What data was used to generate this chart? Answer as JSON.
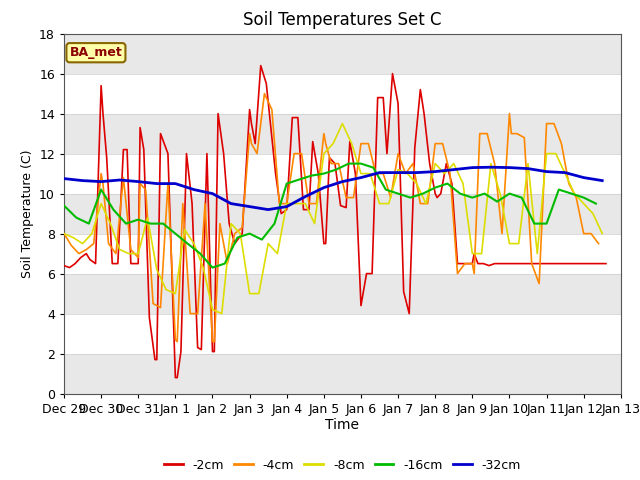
{
  "title": "Soil Temperatures Set C",
  "xlabel": "Time",
  "ylabel": "Soil Temperature (C)",
  "ylim": [
    0,
    18
  ],
  "annotation": "BA_met",
  "bg_color": "#ffffff",
  "plot_bg_color": "#ffffff",
  "band_color": "#e8e8e8",
  "xtick_labels": [
    "Dec 29",
    "Dec 30",
    "Dec 31",
    "Jan 1",
    "Jan 2",
    "Jan 3",
    "Jan 4",
    "Jan 5",
    "Jan 6",
    "Jan 7",
    "Jan 8",
    "Jan 9",
    "Jan 10",
    "Jan 11",
    "Jan 12",
    "Jan 13"
  ],
  "series": {
    "-2cm": {
      "color": "#dd0000",
      "lw": 1.2,
      "data_x": [
        0.0,
        0.15,
        0.3,
        0.45,
        0.6,
        0.7,
        0.85,
        1.0,
        1.05,
        1.15,
        1.3,
        1.45,
        1.6,
        1.7,
        1.8,
        2.0,
        2.05,
        2.15,
        2.3,
        2.45,
        2.5,
        2.6,
        2.8,
        3.0,
        3.05,
        3.15,
        3.3,
        3.45,
        3.6,
        3.7,
        3.85,
        4.0,
        4.05,
        4.15,
        4.3,
        4.45,
        4.6,
        4.8,
        5.0,
        5.05,
        5.15,
        5.3,
        5.45,
        5.6,
        5.7,
        5.85,
        6.0,
        6.15,
        6.3,
        6.45,
        6.6,
        6.7,
        6.85,
        7.0,
        7.05,
        7.15,
        7.3,
        7.45,
        7.6,
        7.7,
        7.85,
        8.0,
        8.15,
        8.3,
        8.45,
        8.6,
        8.7,
        8.85,
        9.0,
        9.15,
        9.3,
        9.45,
        9.6,
        9.7,
        9.85,
        10.0,
        10.05,
        10.15,
        10.3,
        10.45,
        10.6,
        10.8,
        11.0,
        11.05,
        11.15,
        11.3,
        11.45,
        11.6,
        11.7,
        11.85,
        12.0,
        12.05,
        12.15,
        12.3,
        12.45,
        12.6,
        12.8,
        13.0,
        13.05,
        13.15,
        13.3,
        13.45,
        13.6,
        13.8,
        14.0,
        14.05,
        14.15,
        14.3,
        14.45,
        14.6
      ],
      "data_y": [
        6.4,
        6.3,
        6.5,
        6.8,
        7.0,
        6.7,
        6.5,
        15.4,
        14.0,
        11.8,
        6.5,
        6.5,
        12.2,
        12.2,
        6.5,
        6.5,
        13.3,
        12.2,
        3.8,
        1.7,
        1.7,
        13.0,
        12.0,
        0.8,
        0.8,
        2.1,
        12.0,
        9.5,
        2.3,
        2.2,
        12.0,
        2.1,
        2.1,
        14.0,
        12.0,
        8.5,
        7.5,
        8.0,
        14.2,
        13.5,
        12.5,
        16.4,
        15.5,
        12.8,
        11.0,
        9.0,
        9.2,
        13.8,
        13.8,
        9.2,
        9.2,
        12.6,
        11.0,
        7.5,
        7.5,
        11.8,
        11.5,
        9.4,
        9.3,
        12.6,
        11.0,
        4.4,
        6.0,
        6.0,
        14.8,
        14.8,
        12.0,
        16.0,
        14.5,
        5.1,
        4.0,
        12.3,
        15.2,
        14.0,
        11.5,
        10.0,
        9.8,
        10.0,
        11.5,
        10.5,
        6.5,
        6.5,
        6.5,
        7.0,
        6.5,
        6.5,
        6.4,
        6.5,
        6.5,
        6.5,
        6.5,
        6.5,
        6.5,
        6.5,
        6.5,
        6.5,
        6.5,
        6.5,
        6.5,
        6.5,
        6.5,
        6.5,
        6.5,
        6.5,
        6.5,
        6.5,
        6.5,
        6.5,
        6.5,
        6.5
      ]
    },
    "-4cm": {
      "color": "#ff8800",
      "lw": 1.2,
      "data_x": [
        0.0,
        0.2,
        0.4,
        0.6,
        0.8,
        1.0,
        1.05,
        1.2,
        1.4,
        1.6,
        1.8,
        2.0,
        2.05,
        2.2,
        2.4,
        2.6,
        2.8,
        3.0,
        3.05,
        3.2,
        3.4,
        3.6,
        3.8,
        4.0,
        4.05,
        4.2,
        4.4,
        4.6,
        4.8,
        5.0,
        5.05,
        5.2,
        5.4,
        5.6,
        5.8,
        6.0,
        6.2,
        6.4,
        6.6,
        6.8,
        7.0,
        7.05,
        7.2,
        7.4,
        7.6,
        7.8,
        8.0,
        8.2,
        8.4,
        8.6,
        8.8,
        9.0,
        9.2,
        9.4,
        9.6,
        9.8,
        10.0,
        10.2,
        10.4,
        10.6,
        10.8,
        11.0,
        11.05,
        11.2,
        11.4,
        11.6,
        11.8,
        12.0,
        12.05,
        12.2,
        12.4,
        12.6,
        12.8,
        13.0,
        13.2,
        13.4,
        13.6,
        13.8,
        14.0,
        14.2,
        14.4
      ],
      "data_y": [
        8.0,
        7.4,
        7.0,
        7.2,
        7.5,
        11.0,
        10.5,
        7.5,
        7.0,
        10.8,
        7.2,
        6.8,
        10.5,
        10.2,
        4.5,
        4.3,
        10.5,
        2.7,
        2.6,
        9.5,
        4.0,
        4.0,
        9.5,
        2.6,
        2.6,
        8.5,
        6.5,
        8.0,
        8.3,
        13.0,
        12.5,
        12.0,
        15.0,
        14.2,
        9.5,
        9.5,
        12.0,
        12.0,
        9.5,
        9.5,
        13.0,
        12.5,
        11.5,
        11.5,
        9.8,
        9.8,
        12.5,
        12.5,
        11.0,
        11.0,
        9.8,
        12.0,
        11.0,
        11.5,
        9.5,
        9.5,
        12.5,
        12.5,
        11.0,
        6.0,
        6.5,
        6.5,
        6.0,
        13.0,
        13.0,
        11.5,
        8.0,
        14.0,
        13.0,
        13.0,
        12.8,
        6.5,
        5.5,
        13.5,
        13.5,
        12.5,
        10.5,
        9.8,
        8.0,
        8.0,
        7.5
      ]
    },
    "-8cm": {
      "color": "#dddd00",
      "lw": 1.2,
      "data_x": [
        0.0,
        0.25,
        0.5,
        0.75,
        1.0,
        1.25,
        1.5,
        1.75,
        2.0,
        2.25,
        2.5,
        2.75,
        3.0,
        3.25,
        3.5,
        3.75,
        4.0,
        4.25,
        4.5,
        4.75,
        5.0,
        5.25,
        5.5,
        5.75,
        6.0,
        6.25,
        6.5,
        6.75,
        7.0,
        7.25,
        7.5,
        7.75,
        8.0,
        8.25,
        8.5,
        8.75,
        9.0,
        9.25,
        9.5,
        9.75,
        10.0,
        10.25,
        10.5,
        10.75,
        11.0,
        11.25,
        11.5,
        11.75,
        12.0,
        12.25,
        12.5,
        12.75,
        13.0,
        13.25,
        13.5,
        13.75,
        14.0,
        14.25,
        14.5
      ],
      "data_y": [
        8.0,
        7.8,
        7.5,
        8.0,
        9.5,
        8.5,
        7.2,
        7.0,
        7.0,
        8.8,
        6.2,
        5.2,
        5.0,
        8.2,
        7.5,
        6.3,
        4.2,
        4.0,
        8.5,
        8.0,
        5.0,
        5.0,
        7.5,
        7.0,
        9.5,
        9.5,
        9.5,
        8.5,
        12.0,
        12.5,
        13.5,
        12.5,
        11.0,
        11.0,
        9.5,
        9.5,
        11.2,
        11.0,
        10.5,
        9.5,
        11.5,
        11.0,
        11.5,
        10.5,
        7.0,
        7.0,
        11.5,
        10.0,
        7.5,
        7.5,
        11.5,
        7.0,
        12.0,
        12.0,
        11.0,
        10.0,
        9.5,
        9.0,
        8.0
      ]
    },
    "-16cm": {
      "color": "#00bb00",
      "lw": 1.5,
      "data_x": [
        0.0,
        0.33,
        0.67,
        1.0,
        1.33,
        1.67,
        2.0,
        2.33,
        2.67,
        3.0,
        3.33,
        3.67,
        4.0,
        4.33,
        4.67,
        5.0,
        5.33,
        5.67,
        6.0,
        6.33,
        6.67,
        7.0,
        7.33,
        7.67,
        8.0,
        8.33,
        8.67,
        9.0,
        9.33,
        9.67,
        10.0,
        10.33,
        10.67,
        11.0,
        11.33,
        11.67,
        12.0,
        12.33,
        12.67,
        13.0,
        13.33,
        13.67,
        14.0,
        14.33
      ],
      "data_y": [
        9.4,
        8.8,
        8.5,
        10.2,
        9.2,
        8.5,
        8.7,
        8.5,
        8.5,
        8.0,
        7.5,
        7.0,
        6.3,
        6.5,
        7.8,
        8.0,
        7.7,
        8.5,
        10.5,
        10.7,
        10.9,
        11.0,
        11.2,
        11.5,
        11.5,
        11.3,
        10.2,
        10.0,
        9.8,
        10.0,
        10.3,
        10.5,
        10.0,
        9.8,
        10.0,
        9.6,
        10.0,
        9.8,
        8.5,
        8.5,
        10.2,
        10.0,
        9.8,
        9.5
      ]
    },
    "-32cm": {
      "color": "#0000cc",
      "lw": 2.0,
      "data_x": [
        0.0,
        0.5,
        1.0,
        1.5,
        2.0,
        2.5,
        3.0,
        3.5,
        4.0,
        4.5,
        5.0,
        5.5,
        6.0,
        6.5,
        7.0,
        7.5,
        8.0,
        8.5,
        9.0,
        9.5,
        10.0,
        10.5,
        11.0,
        11.5,
        12.0,
        12.5,
        13.0,
        13.5,
        14.0,
        14.5
      ],
      "data_y": [
        10.75,
        10.65,
        10.6,
        10.68,
        10.6,
        10.5,
        10.5,
        10.2,
        10.0,
        9.5,
        9.35,
        9.2,
        9.35,
        9.85,
        10.3,
        10.6,
        10.8,
        11.05,
        11.05,
        11.05,
        11.1,
        11.2,
        11.3,
        11.32,
        11.3,
        11.25,
        11.1,
        11.05,
        10.8,
        10.65
      ]
    }
  }
}
